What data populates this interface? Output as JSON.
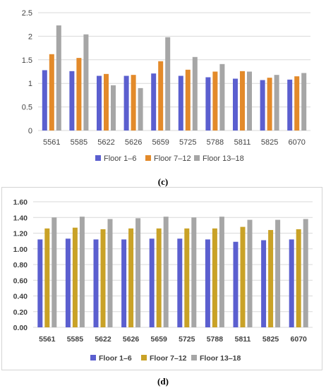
{
  "colors": {
    "floor_1_6": "#5b5fcf",
    "floor_7_12": "#c9a227",
    "floor_13_18": "#a6a6a6",
    "panel_c_floor_7_12": "#e38a2a"
  },
  "chart_data": [
    {
      "type": "bar",
      "panel_label": "(c)",
      "categories": [
        "5561",
        "5585",
        "5622",
        "5626",
        "5659",
        "5725",
        "5788",
        "5811",
        "5825",
        "6070"
      ],
      "series": [
        {
          "name": "Floor 1–6",
          "values": [
            1.28,
            1.26,
            1.16,
            1.16,
            1.21,
            1.16,
            1.13,
            1.1,
            1.07,
            1.08
          ]
        },
        {
          "name": "Floor 7–12",
          "values": [
            1.62,
            1.54,
            1.2,
            1.18,
            1.47,
            1.29,
            1.25,
            1.26,
            1.12,
            1.15
          ]
        },
        {
          "name": "Floor 13–18",
          "values": [
            2.23,
            2.04,
            0.96,
            0.9,
            1.98,
            1.56,
            1.41,
            1.25,
            1.18,
            1.22
          ]
        }
      ],
      "y_ticks": [
        "0",
        "0.5",
        "1",
        "1.5",
        "2",
        "2.5"
      ],
      "ylim": [
        0,
        2.5
      ],
      "grid": true,
      "legend": "bottom"
    },
    {
      "type": "bar",
      "panel_label": "(d)",
      "categories": [
        "5561",
        "5585",
        "5622",
        "5626",
        "5659",
        "5725",
        "5788",
        "5811",
        "5825",
        "6070"
      ],
      "series": [
        {
          "name": "Floor 1–6",
          "values": [
            1.12,
            1.13,
            1.12,
            1.12,
            1.13,
            1.13,
            1.12,
            1.09,
            1.11,
            1.12
          ]
        },
        {
          "name": "Floor 7–12",
          "values": [
            1.26,
            1.27,
            1.25,
            1.26,
            1.26,
            1.26,
            1.26,
            1.28,
            1.24,
            1.25
          ]
        },
        {
          "name": "Floor 13–18",
          "values": [
            1.4,
            1.41,
            1.38,
            1.39,
            1.41,
            1.4,
            1.41,
            1.37,
            1.37,
            1.38
          ]
        }
      ],
      "y_ticks": [
        "0.00",
        "0.20",
        "0.40",
        "0.60",
        "0.80",
        "1.00",
        "1.20",
        "1.40",
        "1.60"
      ],
      "ylim": [
        0,
        1.6
      ],
      "grid": true,
      "legend": "bottom"
    }
  ]
}
